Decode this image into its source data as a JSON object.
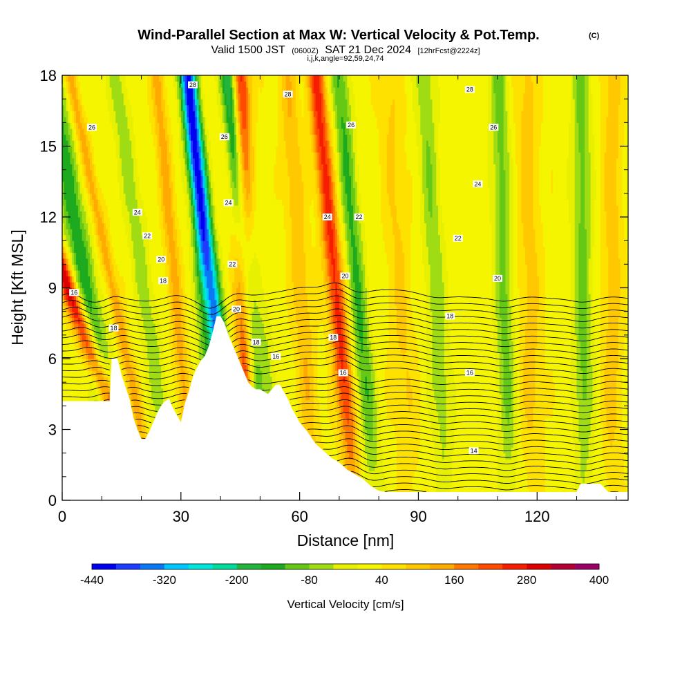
{
  "chart_data": {
    "type": "heatmap",
    "title": "Wind-Parallel Section at Max W: Vertical Velocity & Pot.Temp.",
    "copyright_mark": "(C)",
    "subtitle": "Valid 1500 JST",
    "subtitle_utc": "(0600Z)",
    "subtitle_date": "SAT 21 Dec 2024",
    "subtitle_fcst": "[12hrFcst@2224z]",
    "subtitle2": "i,j,k,angle=92,59,24,74",
    "xlabel": "Distance [nm]",
    "ylabel": "Height [Kft MSL]",
    "xlim": [
      0,
      143
    ],
    "ylim": [
      0,
      18
    ],
    "xticks": [
      "0",
      "30",
      "60",
      "90",
      "120"
    ],
    "xtick_values": [
      0,
      30,
      60,
      90,
      120
    ],
    "yticks": [
      "0",
      "3",
      "6",
      "9",
      "12",
      "15",
      "18"
    ],
    "ytick_values": [
      0,
      3,
      6,
      9,
      12,
      15,
      18
    ],
    "colorbar": {
      "label": "Vertical Velocity [cm/s]",
      "tick_labels": [
        "-440",
        "-320",
        "-200",
        "-80",
        "40",
        "160",
        "280",
        "400"
      ],
      "tick_values": [
        -440,
        -320,
        -200,
        -80,
        40,
        160,
        280,
        400
      ],
      "bins": [
        -440,
        -400,
        -360,
        -320,
        -280,
        -240,
        -200,
        -160,
        -120,
        -80,
        -40,
        0,
        40,
        80,
        120,
        160,
        200,
        240,
        280,
        320,
        360,
        400
      ],
      "colors": [
        "#0000f0",
        "#1e3cff",
        "#0a78f5",
        "#00c8ff",
        "#00e6dc",
        "#00dc9b",
        "#23b43c",
        "#1eaa1e",
        "#64c814",
        "#a0dc14",
        "#e6f000",
        "#f5f500",
        "#ffe100",
        "#ffc800",
        "#ffaa00",
        "#ff7800",
        "#ff4b00",
        "#f51e00",
        "#dc0000",
        "#b40032",
        "#9b0064",
        "#780096"
      ]
    },
    "terrain_profile": {
      "x": [
        0,
        10,
        12,
        12.5,
        14,
        15,
        16,
        17,
        18,
        19,
        20,
        21,
        22,
        23,
        24,
        25,
        26,
        27,
        28,
        29,
        30,
        31,
        32,
        33,
        34,
        35,
        36,
        37,
        38,
        39,
        40,
        41,
        42,
        43,
        44,
        45,
        46,
        47,
        48,
        49,
        50,
        51,
        52,
        53,
        54,
        55,
        56,
        57,
        58,
        60,
        62,
        64,
        66,
        68,
        70,
        72,
        74,
        76,
        78,
        80,
        82,
        84,
        86,
        88,
        90,
        95,
        100,
        105,
        110,
        115,
        120,
        125,
        128,
        130,
        131,
        132,
        136,
        138,
        140,
        141,
        143
      ],
      "y": [
        4.2,
        4.2,
        4.2,
        6,
        6,
        5.3,
        4.8,
        4.3,
        3.5,
        3,
        2.6,
        2.6,
        2.9,
        3.3,
        3.7,
        4,
        4.2,
        4.3,
        3.9,
        3.6,
        3.3,
        4.1,
        4.6,
        5.2,
        5.6,
        5.9,
        6.1,
        6.5,
        7.1,
        7.8,
        7.8,
        7.5,
        7,
        6.6,
        6.2,
        5.8,
        5.4,
        5,
        4.8,
        4.7,
        4.7,
        4.6,
        4.5,
        4.7,
        4.9,
        4.9,
        4.6,
        4.3,
        3.9,
        3.3,
        2.9,
        2.4,
        2.1,
        1.8,
        1.6,
        1.3,
        1.1,
        0.9,
        0.6,
        0.4,
        0.35,
        0.35,
        0.35,
        0.35,
        0.35,
        0.35,
        0.35,
        0.35,
        0.35,
        0.35,
        0.35,
        0.35,
        0.35,
        0.35,
        0.7,
        0.7,
        0.7,
        0.35,
        0.35,
        0.35,
        0.35
      ]
    },
    "w_bands": [
      {
        "x_sfc": 15,
        "lean": -1.0,
        "width": 3.2,
        "amp": -170
      },
      {
        "x_sfc": 20.5,
        "lean": -2.1,
        "width": 2.3,
        "amp": 290
      },
      {
        "x_sfc": 23.5,
        "lean": -1.2,
        "width": 1.6,
        "amp": 120
      },
      {
        "x_sfc": 28,
        "lean": -0.8,
        "width": 2.4,
        "amp": -90
      },
      {
        "x_sfc": 33,
        "lean": -0.5,
        "width": 1.8,
        "amp": 110
      },
      {
        "x_sfc": 38,
        "lean": -0.3,
        "width": 2,
        "amp": -110
      },
      {
        "x_sfc": 44,
        "lean": -0.7,
        "width": 2.2,
        "amp": -360
      },
      {
        "x_sfc": 47,
        "lean": -0.1,
        "width": 2.3,
        "amp": 230
      },
      {
        "x_sfc": 51,
        "lean": -0.5,
        "width": 1.8,
        "amp": -170
      },
      {
        "x_sfc": 56,
        "lean": -0.8,
        "width": 2.4,
        "amp": -80
      },
      {
        "x_sfc": 64,
        "lean": -0.4,
        "width": 2.4,
        "amp": 90
      },
      {
        "x_sfc": 74,
        "lean": -0.55,
        "width": 2.3,
        "amp": 230
      },
      {
        "x_sfc": 79,
        "lean": -0.5,
        "width": 2.4,
        "amp": -150
      },
      {
        "x_sfc": 88,
        "lean": -0.3,
        "width": 3,
        "amp": 60
      },
      {
        "x_sfc": 97,
        "lean": -0.3,
        "width": 2.5,
        "amp": -100
      },
      {
        "x_sfc": 113,
        "lean": -0.15,
        "width": 2.4,
        "amp": -120
      },
      {
        "x_sfc": 119,
        "lean": -0.1,
        "width": 3,
        "amp": 70
      },
      {
        "x_sfc": 132,
        "lean": -0.05,
        "width": 2.4,
        "amp": -120
      },
      {
        "x_sfc": 139,
        "lean": 0,
        "width": 2.4,
        "amp": 80
      }
    ],
    "theta_contour_labels": [
      {
        "text": "28",
        "x": 33,
        "y": 17.6
      },
      {
        "text": "28",
        "x": 57,
        "y": 17.2
      },
      {
        "text": "28",
        "x": 103,
        "y": 17.4
      },
      {
        "text": "26",
        "x": 7.5,
        "y": 15.8
      },
      {
        "text": "26",
        "x": 41,
        "y": 15.4
      },
      {
        "text": "26",
        "x": 73,
        "y": 15.9
      },
      {
        "text": "26",
        "x": 109,
        "y": 15.8
      },
      {
        "text": "24",
        "x": 19,
        "y": 12.2
      },
      {
        "text": "24",
        "x": 42,
        "y": 12.6
      },
      {
        "text": "24",
        "x": 67,
        "y": 12
      },
      {
        "text": "24",
        "x": 105,
        "y": 13.4
      },
      {
        "text": "22",
        "x": 21.5,
        "y": 11.2
      },
      {
        "text": "22",
        "x": 43,
        "y": 10
      },
      {
        "text": "22",
        "x": 75,
        "y": 12
      },
      {
        "text": "22",
        "x": 100,
        "y": 11.1
      },
      {
        "text": "20",
        "x": 25,
        "y": 10.2
      },
      {
        "text": "20",
        "x": 71.5,
        "y": 9.5
      },
      {
        "text": "20",
        "x": 44,
        "y": 8.1
      },
      {
        "text": "20",
        "x": 110,
        "y": 9.4
      },
      {
        "text": "18",
        "x": 25.5,
        "y": 9.3
      },
      {
        "text": "18",
        "x": 13,
        "y": 7.3
      },
      {
        "text": "18",
        "x": 49,
        "y": 6.7
      },
      {
        "text": "18",
        "x": 68.5,
        "y": 6.9
      },
      {
        "text": "18",
        "x": 98,
        "y": 7.8
      },
      {
        "text": "16",
        "x": 3,
        "y": 8.8
      },
      {
        "text": "16",
        "x": 54,
        "y": 6.1
      },
      {
        "text": "16",
        "x": 71,
        "y": 5.4
      },
      {
        "text": "16",
        "x": 103,
        "y": 5.4
      },
      {
        "text": "14",
        "x": 104,
        "y": 2.1
      }
    ],
    "theta_levels": [
      13,
      13.5,
      14,
      14.5,
      15,
      15.5,
      16,
      16.5,
      17,
      17.5,
      18,
      18.5,
      19,
      19.5,
      20,
      20.5,
      21,
      21.5,
      22,
      22.5,
      23,
      23.5,
      24,
      24.5,
      25,
      25.5,
      26,
      26.5,
      27,
      27.5,
      28,
      28.5
    ],
    "grid": false,
    "legend": "colorbar-bottom"
  }
}
